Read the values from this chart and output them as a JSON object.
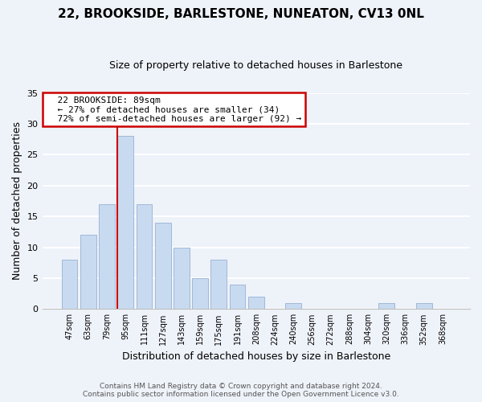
{
  "title": "22, BROOKSIDE, BARLESTONE, NUNEATON, CV13 0NL",
  "subtitle": "Size of property relative to detached houses in Barlestone",
  "xlabel": "Distribution of detached houses by size in Barlestone",
  "ylabel": "Number of detached properties",
  "bar_color": "#c8daf0",
  "bar_edge_color": "#a0b8d8",
  "bin_labels": [
    "47sqm",
    "63sqm",
    "79sqm",
    "95sqm",
    "111sqm",
    "127sqm",
    "143sqm",
    "159sqm",
    "175sqm",
    "191sqm",
    "208sqm",
    "224sqm",
    "240sqm",
    "256sqm",
    "272sqm",
    "288sqm",
    "304sqm",
    "320sqm",
    "336sqm",
    "352sqm",
    "368sqm"
  ],
  "counts": [
    8,
    12,
    17,
    28,
    17,
    14,
    10,
    5,
    8,
    4,
    2,
    0,
    1,
    0,
    0,
    0,
    0,
    1,
    0,
    1,
    0
  ],
  "ylim": [
    0,
    35
  ],
  "yticks": [
    0,
    5,
    10,
    15,
    20,
    25,
    30,
    35
  ],
  "annotation_text_line1": "22 BROOKSIDE: 89sqm",
  "annotation_text_line2": "← 27% of detached houses are smaller (34)",
  "annotation_text_line3": "72% of semi-detached houses are larger (92) →",
  "annotation_box_edge_color": "#cc0000",
  "vline_color": "#cc0000",
  "footer_line1": "Contains HM Land Registry data © Crown copyright and database right 2024.",
  "footer_line2": "Contains public sector information licensed under the Open Government Licence v3.0.",
  "background_color": "#eef2f9",
  "grid_color": "white"
}
